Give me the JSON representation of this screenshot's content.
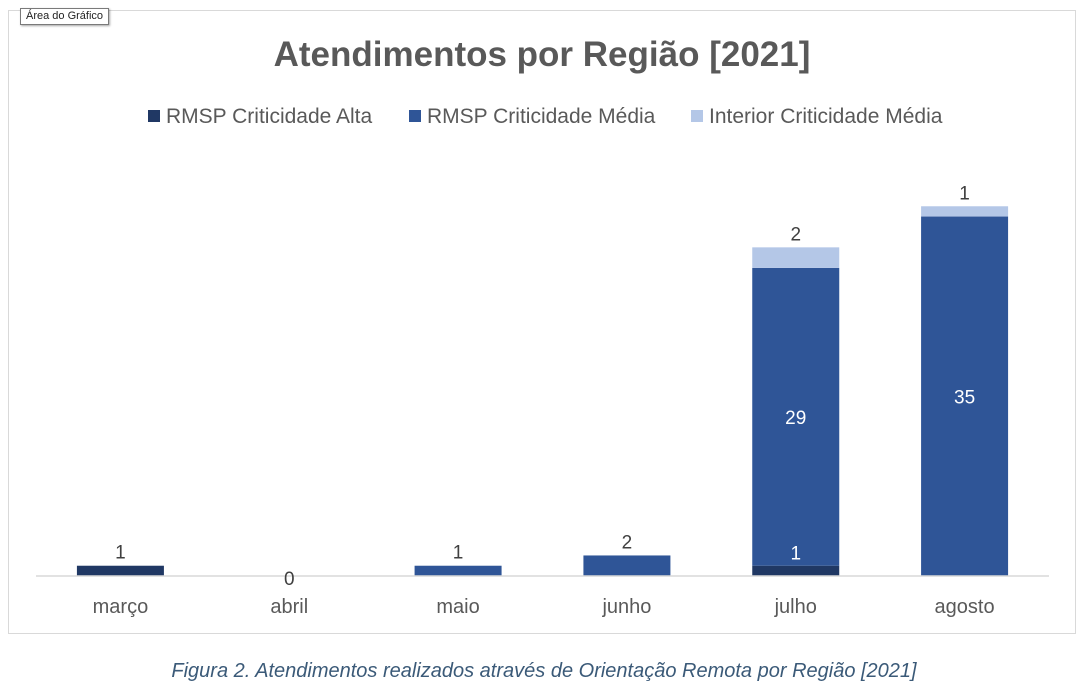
{
  "chart_area_label": "Área do Gráfico",
  "caption": "Figura 2. Atendimentos realizados através de Orientação Remota por Região [2021]",
  "colors": {
    "rmsp_alta": "#203864",
    "rmsp_media": "#2f5597",
    "interior_media": "#b4c7e7",
    "title": "#595959",
    "axis": "#d9d9d9"
  },
  "chart_data": {
    "type": "bar",
    "stacked": true,
    "title": "Atendimentos por Região [2021]",
    "xlabel": "",
    "ylabel": "",
    "ylim": [
      0,
      37
    ],
    "grid": false,
    "legend_position": "top",
    "categories": [
      "março",
      "abril",
      "maio",
      "junho",
      "julho",
      "agosto"
    ],
    "series": [
      {
        "name": "RMSP Criticidade Alta",
        "values": [
          1,
          0,
          0,
          0,
          1,
          0
        ]
      },
      {
        "name": "RMSP Criticidade Média",
        "values": [
          0,
          0,
          1,
          2,
          29,
          35
        ]
      },
      {
        "name": "Interior Criticidade Média",
        "values": [
          0,
          0,
          0,
          0,
          2,
          1
        ]
      }
    ],
    "data_labels": [
      {
        "category": "março",
        "series": "RMSP Criticidade Alta",
        "text": "1"
      },
      {
        "category": "abril",
        "series": "",
        "text": "0"
      },
      {
        "category": "maio",
        "series": "RMSP Criticidade Média",
        "text": "1"
      },
      {
        "category": "junho",
        "series": "RMSP Criticidade Média",
        "text": "2"
      },
      {
        "category": "julho",
        "series": "RMSP Criticidade Alta",
        "text": "1"
      },
      {
        "category": "julho",
        "series": "RMSP Criticidade Média",
        "text": "29"
      },
      {
        "category": "julho",
        "series": "Interior Criticidade Média",
        "text": "2"
      },
      {
        "category": "agosto",
        "series": "RMSP Criticidade Média",
        "text": "35"
      },
      {
        "category": "agosto",
        "series": "Interior Criticidade Média",
        "text": "1"
      }
    ]
  }
}
